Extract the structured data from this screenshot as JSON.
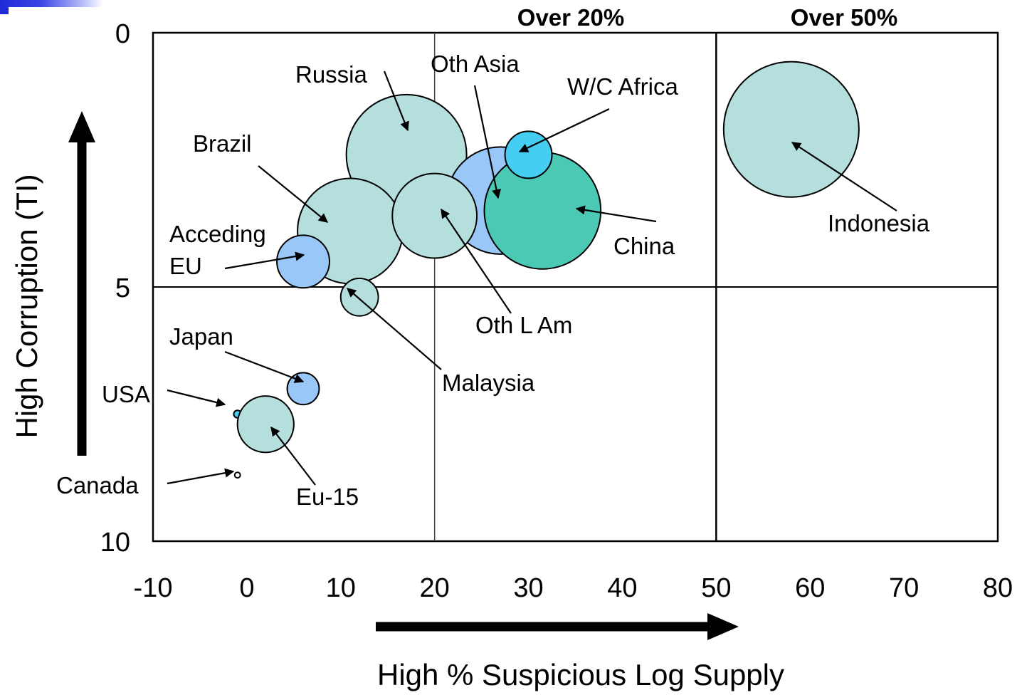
{
  "chart_data": {
    "type": "scatter",
    "xlabel": "High % Suspicious Log Supply",
    "ylabel": "High Corruption (TI)",
    "xlim": [
      -10,
      80
    ],
    "ylim": [
      0,
      10
    ],
    "y_inverted": true,
    "x_ticks": [
      "-10",
      "0",
      "10",
      "20",
      "30",
      "40",
      "50",
      "60",
      "70",
      "80"
    ],
    "y_ticks": [
      "0",
      "5",
      "10"
    ],
    "region_labels": [
      {
        "id": "over20",
        "text": "Over 20%"
      },
      {
        "id": "over50",
        "text": "Over 50%"
      }
    ],
    "reference_lines": {
      "x_thin": 20,
      "x_thick": 50,
      "y": 5
    },
    "points": [
      {
        "id": "russia",
        "label": "Russia",
        "x": 17.0,
        "y": 2.4,
        "size": 6.4,
        "color": "#b4dfdc"
      },
      {
        "id": "oth-asia",
        "label": "Oth Asia",
        "x": 27.0,
        "y": 3.3,
        "size": 5.7,
        "color": "#99c8f8"
      },
      {
        "id": "china",
        "label": "China",
        "x": 31.5,
        "y": 3.5,
        "size": 6.2,
        "color": "#4cc9b4"
      },
      {
        "id": "wc-africa",
        "label": "W/C Africa",
        "x": 30.0,
        "y": 2.4,
        "size": 2.5,
        "color": "#45cdf2"
      },
      {
        "id": "brazil",
        "label": "Brazil",
        "x": 11.0,
        "y": 3.9,
        "size": 5.6,
        "color": "#b4dfdc"
      },
      {
        "id": "oth-lam",
        "label": "Oth L Am",
        "x": 20.0,
        "y": 3.6,
        "size": 4.5,
        "color": "#b4dfdc"
      },
      {
        "id": "accedingeu",
        "label": [
          "Acceding",
          "EU"
        ],
        "x": 6.0,
        "y": 4.5,
        "size": 2.8,
        "color": "#99c8f8"
      },
      {
        "id": "malaysia",
        "label": "Malaysia",
        "x": 12.0,
        "y": 5.2,
        "size": 2.0,
        "color": "#b4dfdc"
      },
      {
        "id": "japan",
        "label": "Japan",
        "x": 6.0,
        "y": 7.0,
        "size": 1.7,
        "color": "#99c8f8"
      },
      {
        "id": "usa",
        "label": "USA",
        "x": -1.0,
        "y": 7.5,
        "size": 0.4,
        "color": "#45cdf2"
      },
      {
        "id": "eu15",
        "label": "Eu-15",
        "x": 2.0,
        "y": 7.7,
        "size": 3.0,
        "color": "#b4dfdc"
      },
      {
        "id": "canada",
        "label": "Canada",
        "x": -1.0,
        "y": 8.7,
        "size": 0.3,
        "color": "#ffffff"
      },
      {
        "id": "indonesia",
        "label": "Indonesia",
        "x": 58.0,
        "y": 1.9,
        "size": 7.2,
        "color": "#b4dfdc"
      }
    ]
  }
}
